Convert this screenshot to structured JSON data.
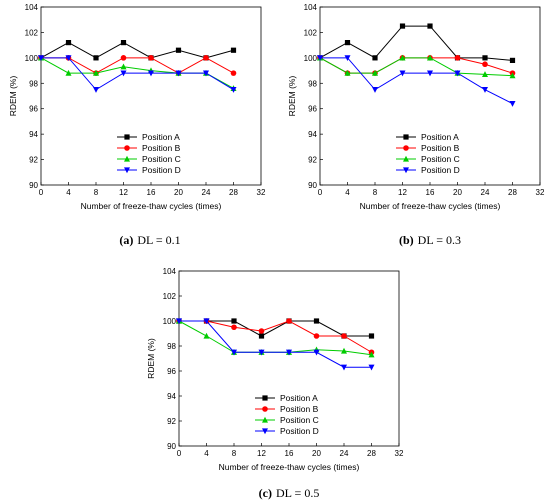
{
  "colors": {
    "position_a": "#000000",
    "position_b": "#ff0000",
    "position_c": "#00cc00",
    "position_d": "#0000ff"
  },
  "markers": {
    "position_a": "square",
    "position_b": "circle",
    "position_c": "triangle-up",
    "position_d": "triangle-down"
  },
  "chart_data": [
    {
      "type": "line",
      "caption_label": "(a)",
      "caption_text": "DL = 0.1",
      "xlabel": "Number of freeze-thaw cycles (times)",
      "ylabel": "RDEM (%)",
      "xlim": [
        0,
        32
      ],
      "ylim": [
        90,
        104
      ],
      "xticks": [
        0,
        4,
        8,
        12,
        16,
        20,
        24,
        28,
        32
      ],
      "yticks": [
        90,
        92,
        94,
        96,
        98,
        100,
        102,
        104
      ],
      "legend_position": "bottom-center",
      "x": [
        0,
        4,
        8,
        12,
        16,
        20,
        24,
        28
      ],
      "series": [
        {
          "name": "Position A",
          "values": [
            100,
            101.2,
            100,
            101.2,
            100,
            100.6,
            100,
            100.6
          ]
        },
        {
          "name": "Position B",
          "values": [
            100,
            100,
            98.8,
            100,
            100,
            98.8,
            100,
            98.8
          ]
        },
        {
          "name": "Position C",
          "values": [
            100,
            98.8,
            98.8,
            99.3,
            99,
            98.8,
            98.8,
            97.6
          ]
        },
        {
          "name": "Position D",
          "values": [
            100,
            100,
            97.5,
            98.8,
            98.8,
            98.8,
            98.8,
            97.5
          ]
        }
      ]
    },
    {
      "type": "line",
      "caption_label": "(b)",
      "caption_text": "DL = 0.3",
      "xlabel": "Number of freeze-thaw cycles (times)",
      "ylabel": "RDEM (%)",
      "xlim": [
        0,
        32
      ],
      "ylim": [
        90,
        104
      ],
      "xticks": [
        0,
        4,
        8,
        12,
        16,
        20,
        24,
        28,
        32
      ],
      "yticks": [
        90,
        92,
        94,
        96,
        98,
        100,
        102,
        104
      ],
      "legend_position": "bottom-center",
      "x": [
        0,
        4,
        8,
        12,
        16,
        20,
        24,
        28
      ],
      "series": [
        {
          "name": "Position A",
          "values": [
            100,
            101.2,
            100,
            102.5,
            102.5,
            100,
            100,
            99.8
          ]
        },
        {
          "name": "Position B",
          "values": [
            100,
            98.8,
            98.8,
            100,
            100,
            100,
            99.5,
            98.8
          ]
        },
        {
          "name": "Position C",
          "values": [
            100,
            98.8,
            98.8,
            100,
            100,
            98.8,
            98.7,
            98.6
          ]
        },
        {
          "name": "Position D",
          "values": [
            100,
            100,
            97.5,
            98.8,
            98.8,
            98.8,
            97.5,
            96.4
          ]
        }
      ]
    },
    {
      "type": "line",
      "caption_label": "(c)",
      "caption_text": "DL = 0.5",
      "xlabel": "Number of freeze-thaw cycles (times)",
      "ylabel": "RDEM (%)",
      "xlim": [
        0,
        32
      ],
      "ylim": [
        90,
        104
      ],
      "xticks": [
        0,
        4,
        8,
        12,
        16,
        20,
        24,
        28,
        32
      ],
      "yticks": [
        90,
        92,
        94,
        96,
        98,
        100,
        102,
        104
      ],
      "legend_position": "bottom-center",
      "x": [
        0,
        4,
        8,
        12,
        16,
        20,
        24,
        28
      ],
      "series": [
        {
          "name": "Position A",
          "values": [
            100,
            100,
            100,
            98.8,
            100,
            100,
            98.8,
            98.8
          ]
        },
        {
          "name": "Position B",
          "values": [
            100,
            100,
            99.5,
            99.2,
            100,
            98.8,
            98.8,
            97.5
          ]
        },
        {
          "name": "Position C",
          "values": [
            100,
            98.8,
            97.5,
            97.5,
            97.5,
            97.7,
            97.6,
            97.3
          ]
        },
        {
          "name": "Position D",
          "values": [
            100,
            100,
            97.5,
            97.5,
            97.5,
            97.5,
            96.3,
            96.3
          ]
        }
      ]
    }
  ]
}
